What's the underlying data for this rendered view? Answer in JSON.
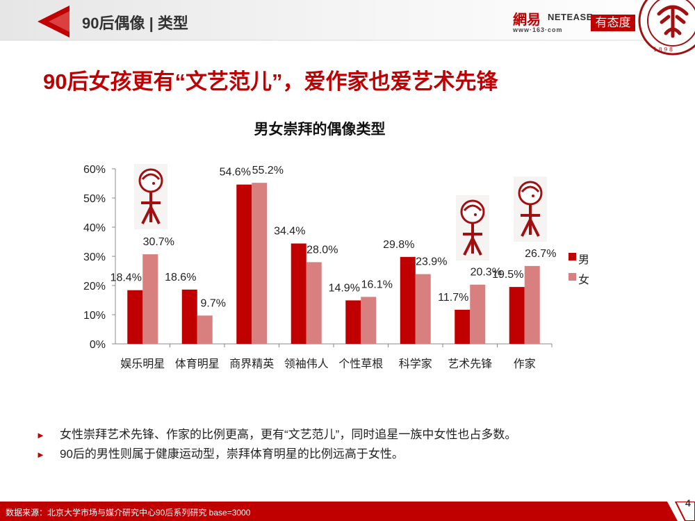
{
  "header": {
    "title": "90后偶像 | 类型"
  },
  "logos": {
    "netease_cn": "網易",
    "netease_en": "NETEASE",
    "netease_url": "www·163·com",
    "youtaidu": "有态度"
  },
  "headline": "90后女孩更有“文艺范儿”，爱作家也爱艺术先锋",
  "chart_data": {
    "type": "bar",
    "title": "男女崇拜的偶像类型",
    "categories": [
      "娱乐明星",
      "体育明星",
      "商界精英",
      "领袖伟人",
      "个性草根",
      "科学家",
      "艺术先锋",
      "作家"
    ],
    "series": [
      {
        "name": "男",
        "values": [
          18.4,
          18.6,
          54.6,
          34.4,
          14.9,
          29.8,
          11.7,
          19.5
        ],
        "labels": [
          "18.4%",
          "18.6%",
          "54.6%",
          "34.4%",
          "14.9%",
          "29.8%",
          "11.7%",
          "19.5%"
        ]
      },
      {
        "name": "女",
        "values": [
          30.7,
          9.7,
          55.2,
          28.0,
          16.1,
          23.9,
          20.3,
          26.7
        ],
        "labels": [
          "30.7%",
          "9.7%",
          "55.2%",
          "28.0%",
          "16.1%",
          "23.9%",
          "20.3%",
          "26.7%"
        ]
      }
    ],
    "ylim": [
      0,
      60
    ],
    "yticks": [
      "0%",
      "10%",
      "20%",
      "30%",
      "40%",
      "50%",
      "60%"
    ],
    "legend_position": "right",
    "colors": {
      "male": "#c00000",
      "female": "#d88080"
    },
    "grid": false
  },
  "bullets": [
    "女性崇拜艺术先锋、作家的比例更高，更有“文艺范儿”，同时追星一族中女性也占多数。",
    "90后的男性则属于健康运动型，崇拜体育明星的比例远高于女性。"
  ],
  "bullet_marker": "►",
  "footer": {
    "source": "数据来源：北京大学市场与媒介研究中心90后系列研究 base=3000"
  },
  "page_number": "4",
  "colors": {
    "accent": "#c00000",
    "female_bar": "#d88080"
  }
}
